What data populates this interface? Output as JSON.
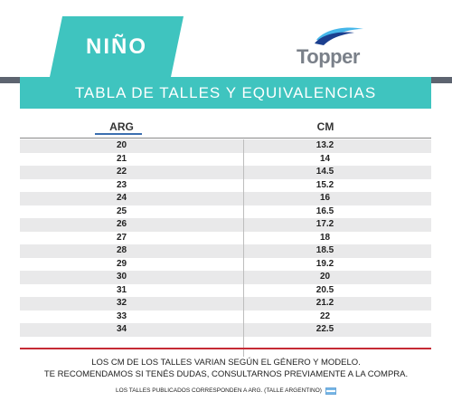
{
  "header": {
    "tab_label": "NIÑO",
    "brand": "Topper",
    "title": "TABLA DE TALLES Y EQUIVALENCIAS"
  },
  "table": {
    "columns": [
      "ARG",
      "CM"
    ],
    "rows": [
      [
        "20",
        "13.2"
      ],
      [
        "21",
        "14"
      ],
      [
        "22",
        "14.5"
      ],
      [
        "23",
        "15.2"
      ],
      [
        "24",
        "16"
      ],
      [
        "25",
        "16.5"
      ],
      [
        "26",
        "17.2"
      ],
      [
        "27",
        "18"
      ],
      [
        "28",
        "18.5"
      ],
      [
        "29",
        "19.2"
      ],
      [
        "30",
        "20"
      ],
      [
        "31",
        "20.5"
      ],
      [
        "32",
        "21.2"
      ],
      [
        "33",
        "22"
      ],
      [
        "34",
        "22.5"
      ]
    ]
  },
  "footer": {
    "note1": "LOS CM DE LOS TALLES VARIAN SEGÚN EL GÉNERO Y MODELO.",
    "note2": "TE RECOMENDAMOS SI TENÉS DUDAS, CONSULTARNOS PREVIAMENTE A LA COMPRA.",
    "note3": "LOS TALLES PUBLICADOS CORRESPONDEN A ARG. (TALLE ARGENTINO)"
  },
  "colors": {
    "teal": "#3fc4bf",
    "gray_band": "#5d6470",
    "red_rule": "#c62a35",
    "arg_underline": "#3b6fb0"
  }
}
